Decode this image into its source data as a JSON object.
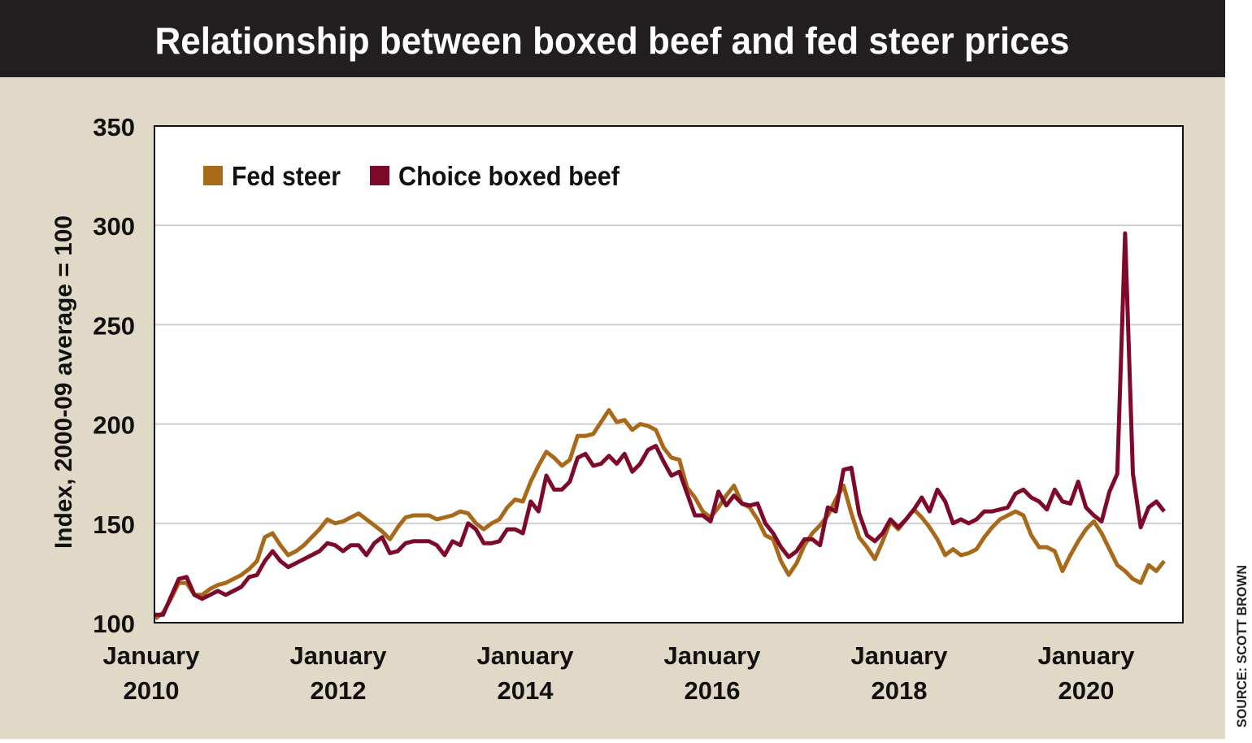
{
  "chart_data": {
    "type": "line",
    "title": "Relationship between boxed beef and fed steer prices",
    "ylabel": "Index, 2000-09 average = 100",
    "xlabel": "",
    "ylim": [
      100,
      350
    ],
    "yticks": [
      "100",
      "150",
      "200",
      "250",
      "300",
      "350"
    ],
    "xticks": [
      {
        "month": "January",
        "year": "2010"
      },
      {
        "month": "January",
        "year": "2012"
      },
      {
        "month": "January",
        "year": "2014"
      },
      {
        "month": "January",
        "year": "2016"
      },
      {
        "month": "January",
        "year": "2018"
      },
      {
        "month": "January",
        "year": "2020"
      }
    ],
    "x_range": [
      "2010-01",
      "2020-10"
    ],
    "x_frequency": "monthly",
    "grid": "horizontal",
    "legend_position": "top-left",
    "source": "SOURCE: SCOTT BROWN",
    "series": [
      {
        "name": "Fed steer",
        "color": "#a86a1a",
        "values": [
          102,
          105,
          112,
          120,
          120,
          114,
          114,
          117,
          119,
          120,
          122,
          124,
          127,
          131,
          143,
          145,
          139,
          134,
          136,
          139,
          143,
          147,
          152,
          150,
          151,
          153,
          155,
          152,
          149,
          146,
          142,
          148,
          153,
          154,
          154,
          154,
          152,
          153,
          154,
          156,
          155,
          150,
          147,
          150,
          152,
          158,
          162,
          161,
          171,
          179,
          186,
          183,
          179,
          182,
          194,
          194,
          195,
          201,
          207,
          201,
          202,
          197,
          200,
          199,
          197,
          188,
          183,
          182,
          168,
          163,
          156,
          153,
          158,
          164,
          169,
          160,
          158,
          152,
          144,
          142,
          131,
          124,
          130,
          139,
          145,
          149,
          154,
          162,
          169,
          155,
          143,
          138,
          132,
          141,
          151,
          147,
          152,
          157,
          153,
          148,
          142,
          134,
          137,
          134,
          135,
          137,
          143,
          148,
          152,
          154,
          156,
          154,
          144,
          138,
          138,
          136,
          126,
          134,
          141,
          147,
          151,
          145,
          137,
          129,
          126,
          122,
          120,
          129,
          126,
          131
        ]
      },
      {
        "name": "Choice boxed beef",
        "color": "#7d0a2a",
        "values": [
          104,
          104,
          113,
          122,
          123,
          114,
          112,
          114,
          116,
          114,
          116,
          118,
          123,
          124,
          131,
          136,
          131,
          128,
          130,
          132,
          134,
          136,
          140,
          139,
          136,
          139,
          139,
          134,
          140,
          143,
          135,
          136,
          140,
          141,
          141,
          141,
          139,
          134,
          141,
          139,
          150,
          147,
          140,
          140,
          141,
          147,
          147,
          145,
          161,
          156,
          174,
          167,
          167,
          171,
          183,
          185,
          179,
          180,
          184,
          180,
          185,
          176,
          180,
          187,
          189,
          181,
          174,
          176,
          165,
          154,
          154,
          151,
          166,
          159,
          164,
          160,
          159,
          160,
          150,
          145,
          138,
          133,
          136,
          142,
          142,
          139,
          158,
          156,
          177,
          178,
          155,
          144,
          141,
          145,
          152,
          148,
          152,
          157,
          163,
          156,
          167,
          161,
          150,
          152,
          150,
          152,
          156,
          156,
          157,
          158,
          165,
          167,
          163,
          161,
          157,
          167,
          161,
          160,
          171,
          158,
          154,
          151,
          166,
          175,
          296,
          175,
          148,
          158,
          161,
          156
        ]
      }
    ]
  }
}
